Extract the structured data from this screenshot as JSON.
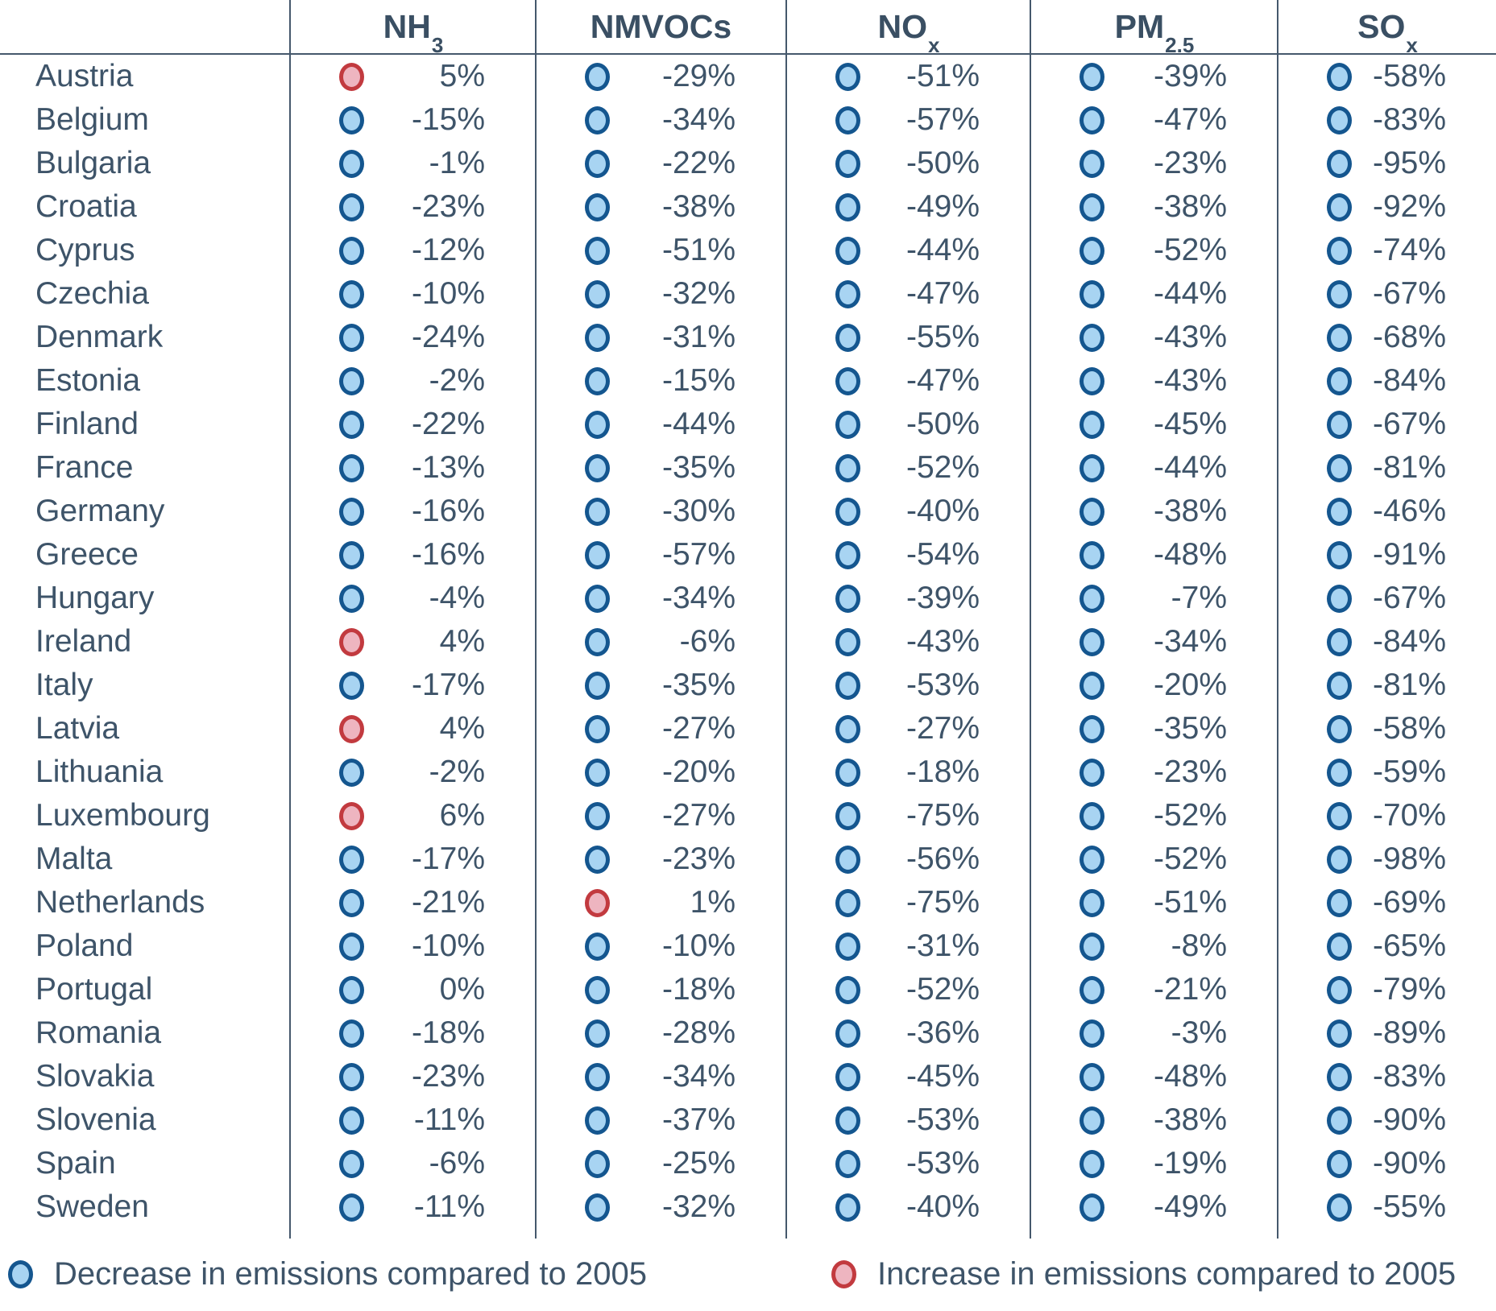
{
  "legend": {
    "decrease_label": "Decrease in emissions compared to 2005",
    "increase_label": "Increase in emissions compared to 2005"
  },
  "colors": {
    "decrease_fill": "#a8d4f2",
    "decrease_border": "#14568f",
    "increase_fill": "#eeb5c0",
    "increase_border": "#c23a3f",
    "text": "#3e5469",
    "line": "#45586c"
  },
  "chart_data": {
    "type": "table",
    "title": "",
    "unit": "% change in emissions compared to 2005",
    "legend_position": "bottom",
    "columns": [
      {
        "id": "nh3",
        "base": "NH",
        "sub": "3"
      },
      {
        "id": "nmvocs",
        "base": "NMVOCs",
        "sub": ""
      },
      {
        "id": "nox",
        "base": "NO",
        "sub": "x"
      },
      {
        "id": "pm25",
        "base": "PM",
        "sub": "2.5"
      },
      {
        "id": "sox",
        "base": "SO",
        "sub": "x"
      }
    ],
    "rows": [
      {
        "country": "Austria",
        "values": [
          5,
          -29,
          -51,
          -39,
          -58
        ]
      },
      {
        "country": "Belgium",
        "values": [
          -15,
          -34,
          -57,
          -47,
          -83
        ]
      },
      {
        "country": "Bulgaria",
        "values": [
          -1,
          -22,
          -50,
          -23,
          -95
        ]
      },
      {
        "country": "Croatia",
        "values": [
          -23,
          -38,
          -49,
          -38,
          -92
        ]
      },
      {
        "country": "Cyprus",
        "values": [
          -12,
          -51,
          -44,
          -52,
          -74
        ]
      },
      {
        "country": "Czechia",
        "values": [
          -10,
          -32,
          -47,
          -44,
          -67
        ]
      },
      {
        "country": "Denmark",
        "values": [
          -24,
          -31,
          -55,
          -43,
          -68
        ]
      },
      {
        "country": "Estonia",
        "values": [
          -2,
          -15,
          -47,
          -43,
          -84
        ]
      },
      {
        "country": "Finland",
        "values": [
          -22,
          -44,
          -50,
          -45,
          -67
        ]
      },
      {
        "country": "France",
        "values": [
          -13,
          -35,
          -52,
          -44,
          -81
        ]
      },
      {
        "country": "Germany",
        "values": [
          -16,
          -30,
          -40,
          -38,
          -46
        ]
      },
      {
        "country": "Greece",
        "values": [
          -16,
          -57,
          -54,
          -48,
          -91
        ]
      },
      {
        "country": "Hungary",
        "values": [
          -4,
          -34,
          -39,
          -7,
          -67
        ]
      },
      {
        "country": "Ireland",
        "values": [
          4,
          -6,
          -43,
          -34,
          -84
        ]
      },
      {
        "country": "Italy",
        "values": [
          -17,
          -35,
          -53,
          -20,
          -81
        ]
      },
      {
        "country": "Latvia",
        "values": [
          4,
          -27,
          -27,
          -35,
          -58
        ]
      },
      {
        "country": "Lithuania",
        "values": [
          -2,
          -20,
          -18,
          -23,
          -59
        ]
      },
      {
        "country": "Luxembourg",
        "values": [
          6,
          -27,
          -75,
          -52,
          -70
        ]
      },
      {
        "country": "Malta",
        "values": [
          -17,
          -23,
          -56,
          -52,
          -98
        ]
      },
      {
        "country": "Netherlands",
        "values": [
          -21,
          1,
          -75,
          -51,
          -69
        ]
      },
      {
        "country": "Poland",
        "values": [
          -10,
          -10,
          -31,
          -8,
          -65
        ]
      },
      {
        "country": "Portugal",
        "values": [
          0,
          -18,
          -52,
          -21,
          -79
        ]
      },
      {
        "country": "Romania",
        "values": [
          -18,
          -28,
          -36,
          -3,
          -89
        ]
      },
      {
        "country": "Slovakia",
        "values": [
          -23,
          -34,
          -45,
          -48,
          -83
        ]
      },
      {
        "country": "Slovenia",
        "values": [
          -11,
          -37,
          -53,
          -38,
          -90
        ]
      },
      {
        "country": "Spain",
        "values": [
          -6,
          -25,
          -53,
          -19,
          -90
        ]
      },
      {
        "country": "Sweden",
        "values": [
          -11,
          -32,
          -40,
          -49,
          -55
        ]
      }
    ]
  }
}
